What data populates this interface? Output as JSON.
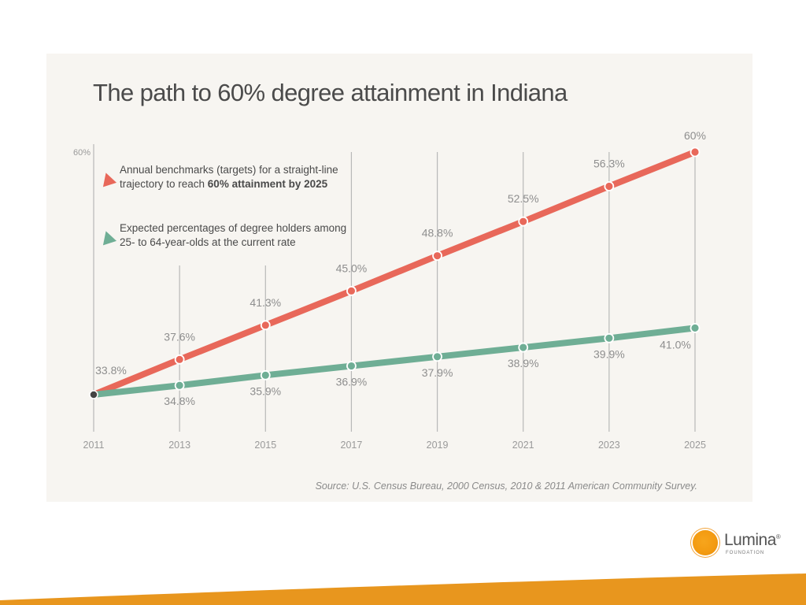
{
  "title": "The path to 60% degree attainment in Indiana",
  "legend": {
    "targets_text": "Annual benchmarks (targets) for a straight-line trajectory to reach ",
    "targets_bold": "60% attainment by 2025",
    "expected_text": "Expected percentages of degree holders among 25- to 64-year-olds at the current rate"
  },
  "source": "Source: U.S. Census Bureau, 2000 Census, 2010 & 2011 American Community Survey.",
  "logo": {
    "name": "Lumina",
    "trademark": "®",
    "subtitle": "FOUNDATION"
  },
  "colors": {
    "targets": "#e8685a",
    "expected": "#6fae95",
    "start_point": "#444444",
    "band": "#e8961e"
  },
  "chart_data": {
    "type": "line",
    "x": [
      "2011",
      "2013",
      "2015",
      "2017",
      "2019",
      "2021",
      "2023",
      "2025"
    ],
    "y_axis_label": "60%",
    "ylim": [
      33.8,
      60
    ],
    "series": [
      {
        "key": "targets",
        "values": [
          33.8,
          37.6,
          41.3,
          45.0,
          48.8,
          52.5,
          56.3,
          60
        ],
        "labels": [
          "33.8%",
          "37.6%",
          "41.3%",
          "45.0%",
          "48.8%",
          "52.5%",
          "56.3%",
          "60%"
        ]
      },
      {
        "key": "expected",
        "values": [
          33.8,
          34.8,
          35.9,
          36.9,
          37.9,
          38.9,
          39.9,
          41.0
        ],
        "labels": [
          "",
          "34.8%",
          "35.9%",
          "36.9%",
          "37.9%",
          "38.9%",
          "39.9%",
          "41.0%"
        ]
      }
    ]
  }
}
